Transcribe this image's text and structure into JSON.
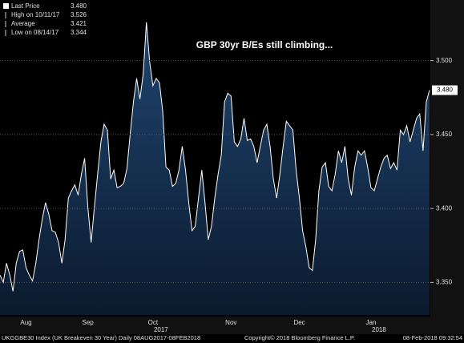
{
  "chart_data": {
    "type": "area",
    "annotation": "GBP 30yr B/Es still climbing...",
    "stats": {
      "labels": [
        "Last Price",
        "High on 10/11/17",
        "Average",
        "Low on 08/14/17"
      ],
      "value_labels": [
        "3.480",
        "3.526",
        "3.421",
        "3.344"
      ]
    },
    "categories": [
      null,
      null,
      null,
      null,
      null,
      null,
      null,
      null,
      "Aug",
      null,
      null,
      null,
      null,
      null,
      null,
      null,
      null,
      null,
      null,
      null,
      null,
      null,
      null,
      null,
      null,
      null,
      null,
      "Sep",
      null,
      null,
      null,
      null,
      null,
      null,
      null,
      null,
      null,
      null,
      null,
      null,
      null,
      null,
      null,
      null,
      null,
      null,
      null,
      "Oct",
      null,
      null,
      null,
      null,
      null,
      null,
      null,
      null,
      null,
      null,
      null,
      null,
      null,
      null,
      null,
      null,
      null,
      null,
      null,
      null,
      null,
      null,
      null,
      "Nov",
      null,
      null,
      null,
      null,
      null,
      null,
      null,
      null,
      null,
      null,
      null,
      null,
      null,
      null,
      null,
      null,
      null,
      null,
      null,
      null,
      "Dec",
      null,
      null,
      null,
      null,
      null,
      null,
      null,
      null,
      null,
      null,
      null,
      null,
      null,
      null,
      null,
      null,
      null,
      null,
      null,
      null,
      null,
      "Jan",
      null,
      null,
      null,
      null,
      null,
      null,
      null,
      null,
      null,
      null,
      null,
      null,
      null,
      null,
      null,
      null,
      null,
      null
    ],
    "years": [
      "2017",
      "2018"
    ],
    "series": [
      {
        "name": "UKGGBE30 Index",
        "color": "#ffffff",
        "values": [
          3.355,
          3.35,
          3.363,
          3.355,
          3.344,
          3.363,
          3.371,
          3.372,
          3.36,
          3.355,
          3.351,
          3.363,
          3.379,
          3.393,
          3.404,
          3.396,
          3.385,
          3.384,
          3.377,
          3.363,
          3.379,
          3.407,
          3.412,
          3.416,
          3.409,
          3.423,
          3.434,
          3.401,
          3.377,
          3.401,
          3.423,
          3.445,
          3.457,
          3.453,
          3.42,
          3.426,
          3.414,
          3.415,
          3.417,
          3.427,
          3.45,
          3.472,
          3.488,
          3.474,
          3.491,
          3.526,
          3.499,
          3.483,
          3.488,
          3.485,
          3.466,
          3.428,
          3.426,
          3.415,
          3.417,
          3.426,
          3.442,
          3.426,
          3.404,
          3.385,
          3.388,
          3.407,
          3.426,
          3.404,
          3.379,
          3.388,
          3.407,
          3.423,
          3.436,
          3.472,
          3.478,
          3.476,
          3.445,
          3.442,
          3.447,
          3.461,
          3.446,
          3.447,
          3.442,
          3.431,
          3.442,
          3.453,
          3.457,
          3.442,
          3.42,
          3.407,
          3.423,
          3.442,
          3.459,
          3.456,
          3.453,
          3.426,
          3.407,
          3.385,
          3.374,
          3.36,
          3.358,
          3.379,
          3.412,
          3.428,
          3.431,
          3.415,
          3.412,
          3.423,
          3.439,
          3.431,
          3.442,
          3.42,
          3.409,
          3.428,
          3.439,
          3.436,
          3.439,
          3.428,
          3.414,
          3.412,
          3.42,
          3.428,
          3.434,
          3.436,
          3.427,
          3.431,
          3.426,
          3.453,
          3.45,
          3.456,
          3.445,
          3.453,
          3.461,
          3.464,
          3.439,
          3.472,
          3.48
        ]
      }
    ],
    "ylim": [
      3.328,
      3.541
    ],
    "yticks": [
      {
        "value": 3.35,
        "label": "3.350"
      },
      {
        "value": 3.4,
        "label": "3.400"
      },
      {
        "value": 3.45,
        "label": "3.450"
      },
      {
        "value": 3.5,
        "label": "3.500"
      }
    ],
    "grid": true,
    "footer": [
      "UKGGBE30 Index (UK Breakeven 30 Year)",
      "Daily 08AUG2017-08FEB2018",
      "Copyright© 2018 Bloomberg Finance L.P.",
      "08-Feb-2018 09:32:54"
    ]
  }
}
